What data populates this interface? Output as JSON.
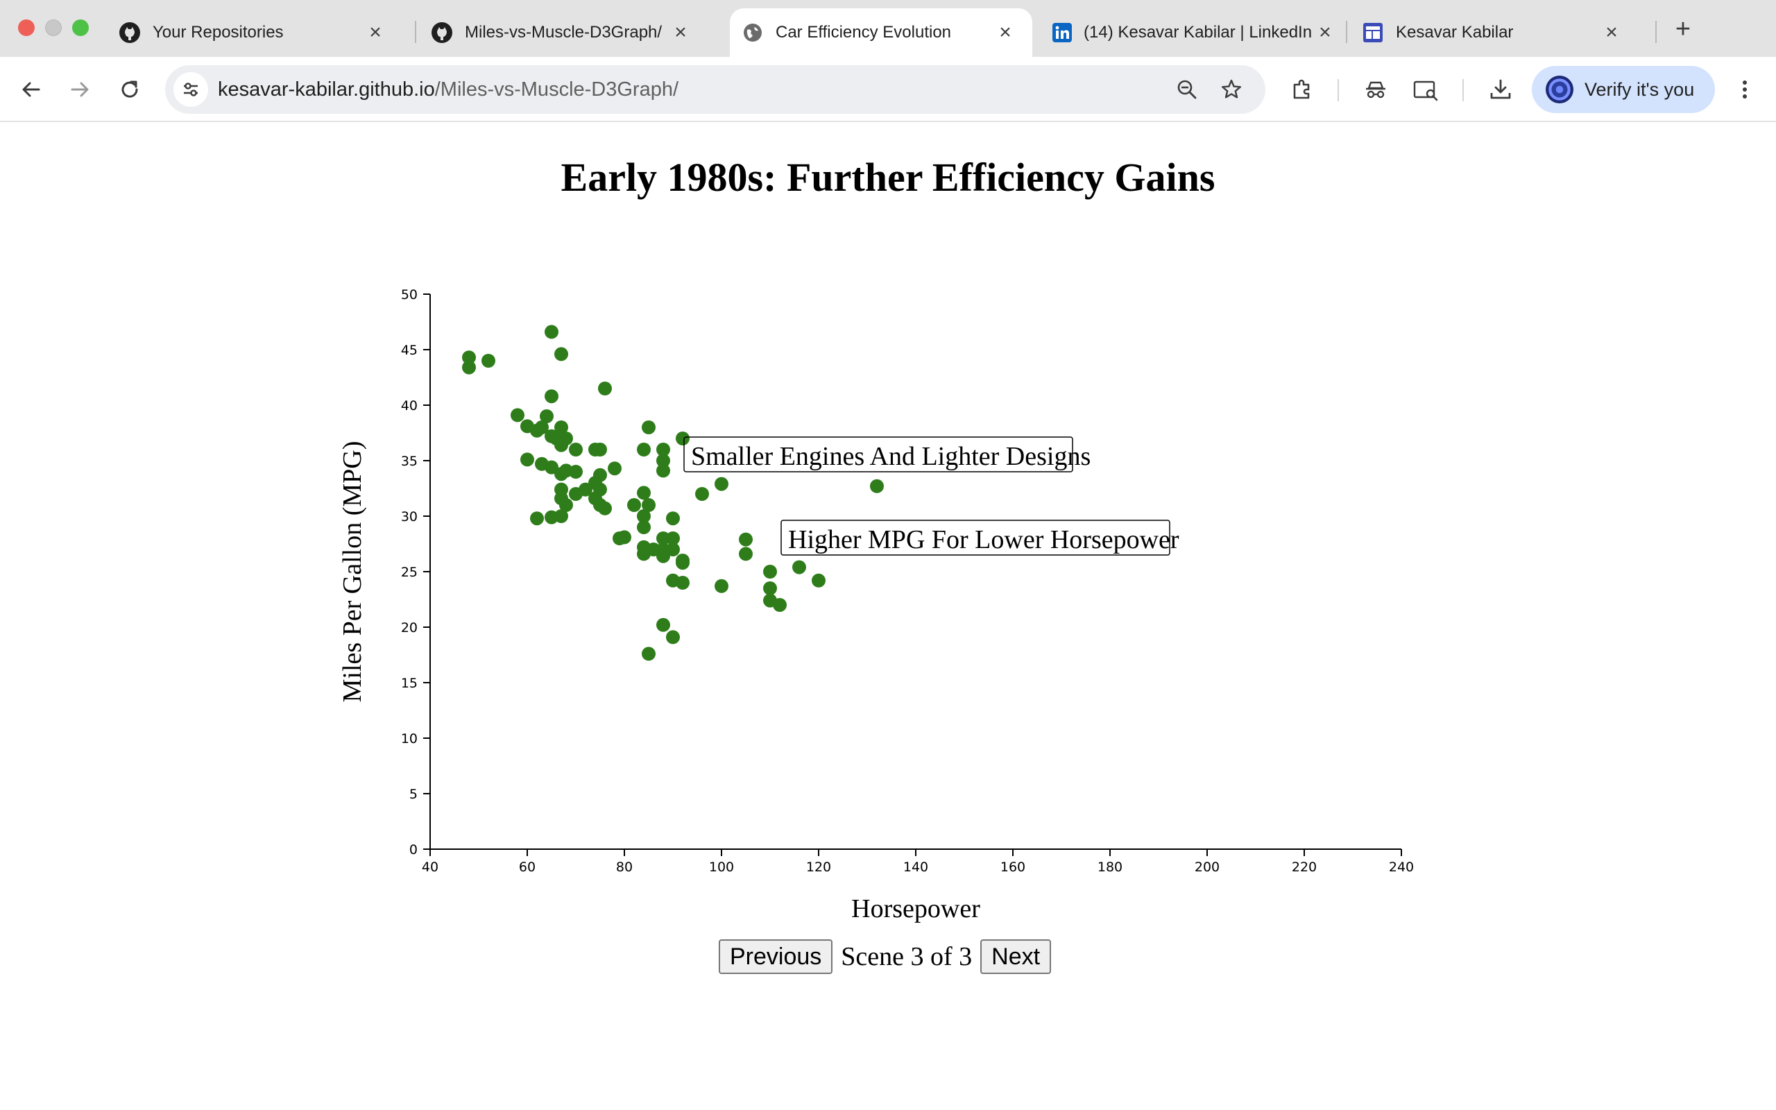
{
  "browser": {
    "tabs": [
      {
        "title": "Your Repositories",
        "icon": "github-icon",
        "active": false
      },
      {
        "title": "Miles-vs-Muscle-D3Graph/",
        "icon": "github-icon",
        "active": false
      },
      {
        "title": "Car Efficiency Evolution",
        "icon": "globe-icon",
        "active": true
      },
      {
        "title": "(14) Kesavar Kabilar | LinkedIn",
        "icon": "linkedin-icon",
        "active": false
      },
      {
        "title": "Kesavar Kabilar",
        "icon": "site-icon",
        "active": false
      }
    ],
    "url_host": "kesavar-kabilar.github.io",
    "url_path": "/Miles-vs-Muscle-D3Graph/",
    "verify_label": "Verify it's you",
    "colors": {
      "tabbar": "#e3e3e4",
      "omnibox": "#eceef1",
      "verify": "#d3e3fd",
      "linkedin": "#0a66c2",
      "site": "#3b4cb8"
    }
  },
  "page": {
    "title": "Early 1980s: Further Efficiency Gains",
    "prev_label": "Previous",
    "next_label": "Next",
    "scene_label": "Scene 3 of 3"
  },
  "chart_data": {
    "type": "scatter",
    "title": "Early 1980s: Further Efficiency Gains",
    "xlabel": "Horsepower",
    "ylabel": "Miles Per Gallon (MPG)",
    "xlim": [
      40,
      240
    ],
    "ylim": [
      0,
      50
    ],
    "xticks": [
      40,
      60,
      80,
      100,
      120,
      140,
      160,
      180,
      200,
      220,
      240
    ],
    "yticks": [
      0,
      5,
      10,
      15,
      20,
      25,
      30,
      35,
      40,
      45,
      50
    ],
    "point_color": "#2e7d1a",
    "annotations": [
      {
        "text": "Smaller Engines And Lighter Designs",
        "x": 92,
        "y": 37
      },
      {
        "text": "Higher MPG For Lower Horsepower",
        "x": 112,
        "y": 29.5
      }
    ],
    "points": [
      [
        48,
        44.3
      ],
      [
        48,
        43.4
      ],
      [
        52,
        44.0
      ],
      [
        65,
        46.6
      ],
      [
        67,
        44.6
      ],
      [
        76,
        41.5
      ],
      [
        65,
        40.8
      ],
      [
        58,
        39.1
      ],
      [
        64,
        39.0
      ],
      [
        60,
        38.1
      ],
      [
        62,
        37.7
      ],
      [
        63,
        38.0
      ],
      [
        67,
        38.0
      ],
      [
        85,
        38.0
      ],
      [
        65,
        37.2
      ],
      [
        66,
        37.0
      ],
      [
        68,
        37.0
      ],
      [
        92,
        37.0
      ],
      [
        67,
        36.4
      ],
      [
        70,
        36.0
      ],
      [
        74,
        36.0
      ],
      [
        75,
        36.0
      ],
      [
        84,
        36.0
      ],
      [
        88,
        36.0
      ],
      [
        60,
        35.1
      ],
      [
        63,
        34.7
      ],
      [
        65,
        34.4
      ],
      [
        88,
        35.0
      ],
      [
        67,
        33.8
      ],
      [
        68,
        34.1
      ],
      [
        70,
        34.0
      ],
      [
        78,
        34.3
      ],
      [
        88,
        34.1
      ],
      [
        75,
        33.7
      ],
      [
        67,
        32.4
      ],
      [
        70,
        32.0
      ],
      [
        72,
        32.4
      ],
      [
        74,
        33.0
      ],
      [
        75,
        32.4
      ],
      [
        84,
        32.1
      ],
      [
        96,
        32.0
      ],
      [
        100,
        32.9
      ],
      [
        132,
        32.7
      ],
      [
        67,
        31.6
      ],
      [
        74,
        31.6
      ],
      [
        75,
        31.0
      ],
      [
        68,
        31.0
      ],
      [
        76,
        30.7
      ],
      [
        82,
        31.0
      ],
      [
        85,
        31.0
      ],
      [
        62,
        29.8
      ],
      [
        65,
        29.9
      ],
      [
        67,
        30.0
      ],
      [
        84,
        30.0
      ],
      [
        90,
        29.8
      ],
      [
        84,
        29.0
      ],
      [
        79,
        28.0
      ],
      [
        80,
        28.1
      ],
      [
        88,
        28.0
      ],
      [
        90,
        28.0
      ],
      [
        105,
        27.9
      ],
      [
        84,
        27.2
      ],
      [
        86,
        27.0
      ],
      [
        88,
        27.0
      ],
      [
        90,
        27.0
      ],
      [
        84,
        26.6
      ],
      [
        88,
        26.4
      ],
      [
        92,
        26.0
      ],
      [
        92,
        25.8
      ],
      [
        105,
        26.6
      ],
      [
        110,
        25.0
      ],
      [
        116,
        25.4
      ],
      [
        90,
        24.2
      ],
      [
        92,
        24.0
      ],
      [
        100,
        23.7
      ],
      [
        110,
        23.5
      ],
      [
        120,
        24.2
      ],
      [
        110,
        22.4
      ],
      [
        112,
        22.0
      ],
      [
        88,
        20.2
      ],
      [
        90,
        19.1
      ],
      [
        85,
        17.6
      ]
    ]
  }
}
